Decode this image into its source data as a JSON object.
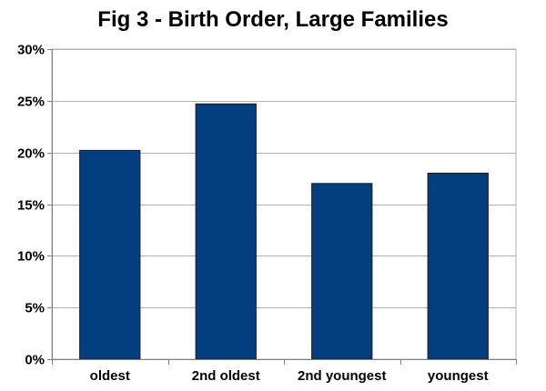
{
  "chart_data": {
    "type": "bar",
    "title": "Fig 3 - Birth Order, Large Families",
    "xlabel": "",
    "ylabel": "",
    "categories": [
      "oldest",
      "2nd oldest",
      "2nd youngest",
      "youngest"
    ],
    "values": [
      20.2,
      24.7,
      17.0,
      18.0
    ],
    "ylim": [
      0,
      30
    ],
    "yticks": [
      0,
      5,
      10,
      15,
      20,
      25,
      30
    ],
    "ytick_labels": [
      "0%",
      "5%",
      "10%",
      "15%",
      "20%",
      "25%",
      "30%"
    ],
    "grid": true,
    "legend": false,
    "colors": {
      "bar": "#033f7f",
      "bar_edge": "#1c1c1c",
      "grid": "#b3b3b3",
      "plot_border": "#b3b3b3",
      "axis": "#808080"
    }
  }
}
